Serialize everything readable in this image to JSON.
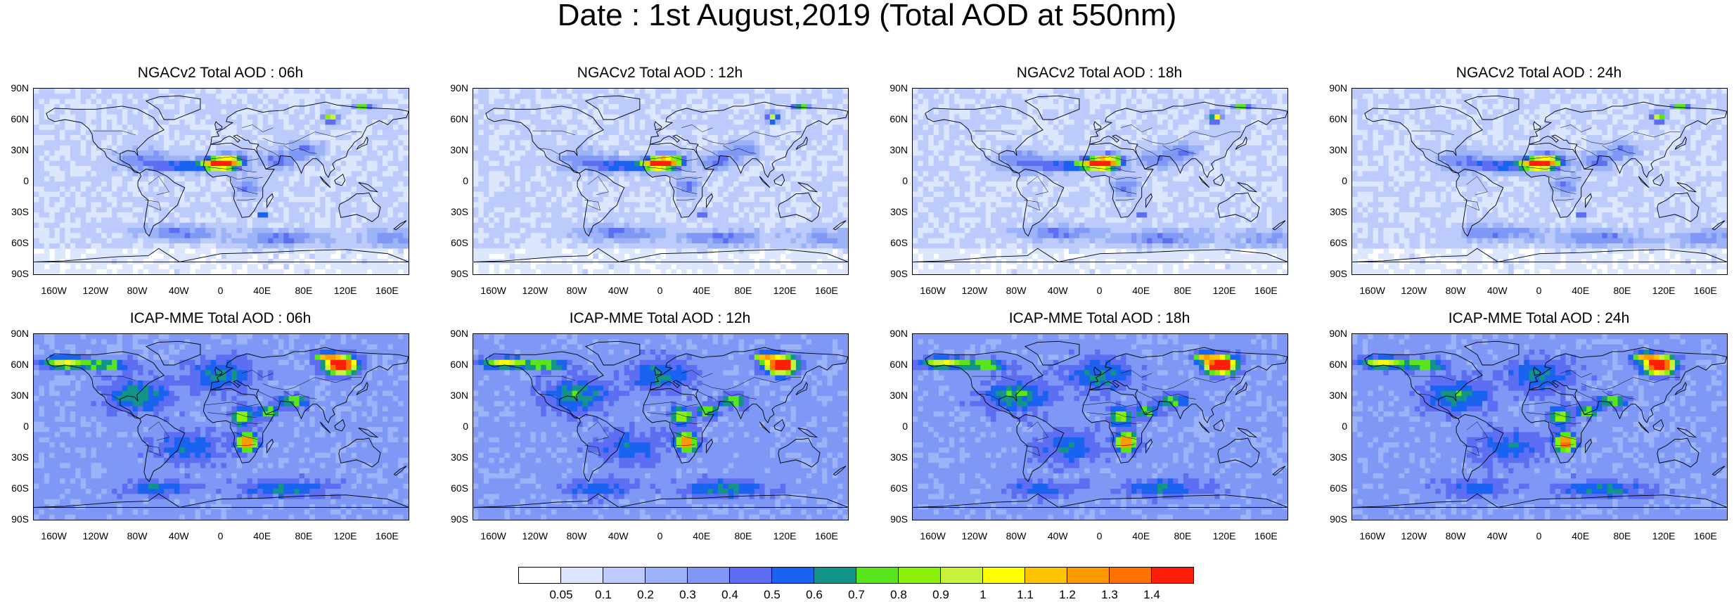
{
  "title": "Date : 1st August,2019 (Total AOD at 550nm)",
  "panels": [
    {
      "title": "NGACv2 Total AOD : 06h",
      "model": "NGACv2"
    },
    {
      "title": "NGACv2 Total AOD : 12h",
      "model": "NGACv2"
    },
    {
      "title": "NGACv2 Total AOD : 18h",
      "model": "NGACv2"
    },
    {
      "title": "NGACv2 Total AOD : 24h",
      "model": "NGACv2"
    },
    {
      "title": "ICAP-MME Total AOD : 06h",
      "model": "ICAP-MME"
    },
    {
      "title": "ICAP-MME Total AOD : 12h",
      "model": "ICAP-MME"
    },
    {
      "title": "ICAP-MME Total AOD : 18h",
      "model": "ICAP-MME"
    },
    {
      "title": "ICAP-MME Total AOD : 24h",
      "model": "ICAP-MME"
    }
  ],
  "lat_labels": [
    "90N",
    "60N",
    "30N",
    "0",
    "30S",
    "60S",
    "90S"
  ],
  "lon_labels": [
    "160W",
    "120W",
    "80W",
    "40W",
    "0",
    "40E",
    "80E",
    "120E",
    "160E"
  ],
  "colorbar": {
    "colors": [
      "#ffffff",
      "#dce6fc",
      "#bccbfb",
      "#9db3f8",
      "#7f98f5",
      "#5d6ef2",
      "#1a63f0",
      "#13948a",
      "#58e51c",
      "#8cf00a",
      "#c7f43a",
      "#ffff00",
      "#ffc400",
      "#ff9a00",
      "#ff7200",
      "#ff1e0a"
    ],
    "labels": [
      "0.05",
      "0.1",
      "0.2",
      "0.3",
      "0.4",
      "0.5",
      "0.6",
      "0.7",
      "0.8",
      "0.9",
      "1",
      "1.1",
      "1.2",
      "1.3",
      "1.4"
    ]
  }
}
